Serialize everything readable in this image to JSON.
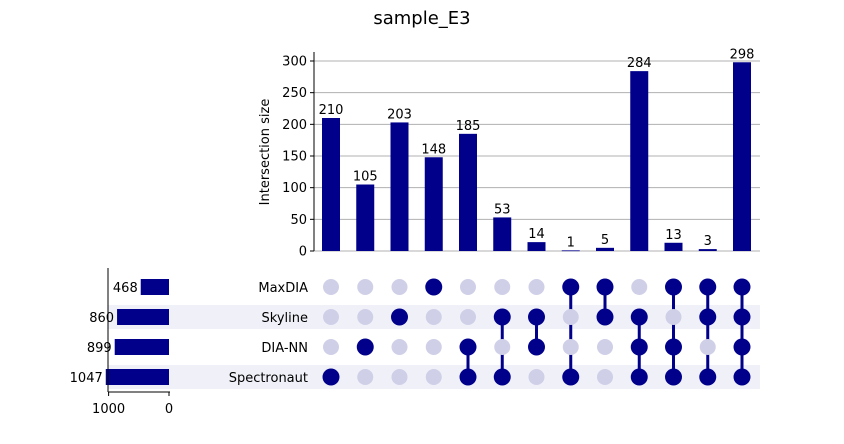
{
  "chart_data": {
    "type": "bar",
    "subtype": "upset",
    "title": "sample_E3",
    "ylabel": "Intersection size",
    "ylim": [
      0,
      310
    ],
    "yticks": [
      0,
      50,
      100,
      150,
      200,
      250,
      300
    ],
    "grid": true,
    "bar_color": "#00008b",
    "inactive_dot_color": "#cfcfe8",
    "shade_color": "#f0f1f8",
    "sets": [
      {
        "name": "MaxDIA",
        "size": 468
      },
      {
        "name": "Skyline",
        "size": 860
      },
      {
        "name": "DIA-NN",
        "size": 899
      },
      {
        "name": "Spectronaut",
        "size": 1047
      }
    ],
    "set_size_ticks": [
      1000,
      0
    ],
    "set_size_xlim": [
      1100,
      0
    ],
    "intersections": [
      {
        "members": [
          "Spectronaut"
        ],
        "value": 210
      },
      {
        "members": [
          "DIA-NN"
        ],
        "value": 105
      },
      {
        "members": [
          "Skyline"
        ],
        "value": 203
      },
      {
        "members": [
          "MaxDIA"
        ],
        "value": 148
      },
      {
        "members": [
          "DIA-NN",
          "Spectronaut"
        ],
        "value": 185
      },
      {
        "members": [
          "Skyline",
          "Spectronaut"
        ],
        "value": 53
      },
      {
        "members": [
          "Skyline",
          "DIA-NN"
        ],
        "value": 14
      },
      {
        "members": [
          "MaxDIA",
          "Spectronaut"
        ],
        "value": 1
      },
      {
        "members": [
          "MaxDIA",
          "Skyline"
        ],
        "value": 5
      },
      {
        "members": [
          "Skyline",
          "DIA-NN",
          "Spectronaut"
        ],
        "value": 284
      },
      {
        "members": [
          "MaxDIA",
          "DIA-NN",
          "Spectronaut"
        ],
        "value": 13
      },
      {
        "members": [
          "MaxDIA",
          "Skyline",
          "Spectronaut"
        ],
        "value": 3
      },
      {
        "members": [
          "MaxDIA",
          "Skyline",
          "DIA-NN",
          "Spectronaut"
        ],
        "value": 298
      }
    ]
  }
}
